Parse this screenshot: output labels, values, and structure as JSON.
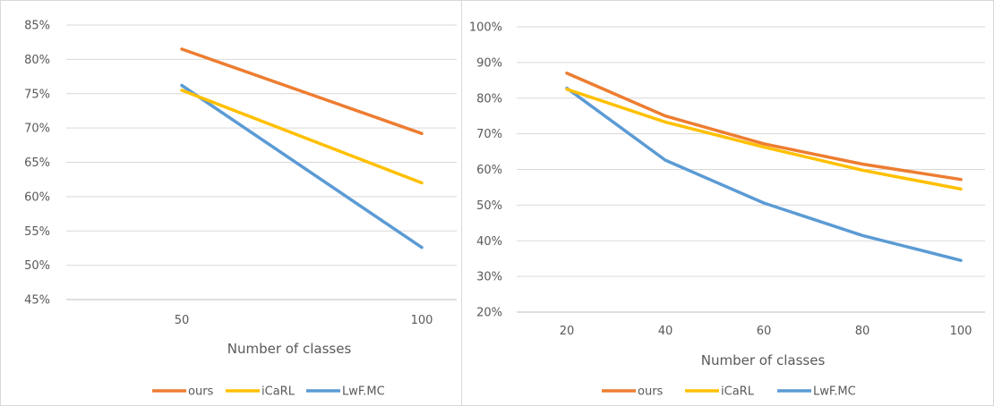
{
  "chart_data": [
    {
      "type": "line",
      "title": "",
      "xlabel": "Number of classes",
      "ylabel": "",
      "x": [
        50,
        100
      ],
      "x_tick_labels": [
        "50",
        "100"
      ],
      "ylim": [
        0.45,
        0.85
      ],
      "y_tick_labels": [
        "45%",
        "50%",
        "55%",
        "60%",
        "65%",
        "70%",
        "75%",
        "80%",
        "85%"
      ],
      "y_ticks": [
        0.45,
        0.5,
        0.55,
        0.6,
        0.65,
        0.7,
        0.75,
        0.8,
        0.85
      ],
      "grid": true,
      "legend_position": "bottom",
      "series": [
        {
          "name": "ours",
          "color": "#ED7D31",
          "values": [
            0.815,
            0.692
          ]
        },
        {
          "name": "iCaRL",
          "color": "#FFC000",
          "values": [
            0.755,
            0.62
          ]
        },
        {
          "name": "LwF.MC",
          "color": "#5B9BD5",
          "values": [
            0.762,
            0.526
          ]
        }
      ]
    },
    {
      "type": "line",
      "title": "",
      "xlabel": "Number of classes",
      "ylabel": "",
      "x": [
        20,
        40,
        60,
        80,
        100
      ],
      "x_tick_labels": [
        "20",
        "40",
        "60",
        "80",
        "100"
      ],
      "ylim": [
        0.2,
        1.0
      ],
      "y_tick_labels": [
        "20%",
        "30%",
        "40%",
        "50%",
        "60%",
        "70%",
        "80%",
        "90%",
        "100%"
      ],
      "y_ticks": [
        0.2,
        0.3,
        0.4,
        0.5,
        0.6,
        0.7,
        0.8,
        0.9,
        1.0
      ],
      "grid": true,
      "legend_position": "bottom",
      "series": [
        {
          "name": "ours",
          "color": "#ED7D31",
          "values": [
            0.87,
            0.75,
            0.672,
            0.615,
            0.572
          ]
        },
        {
          "name": "iCaRL",
          "color": "#FFC000",
          "values": [
            0.825,
            0.733,
            0.663,
            0.598,
            0.545
          ]
        },
        {
          "name": "LwF.MC",
          "color": "#5B9BD5",
          "values": [
            0.828,
            0.626,
            0.506,
            0.415,
            0.345
          ]
        }
      ]
    }
  ]
}
